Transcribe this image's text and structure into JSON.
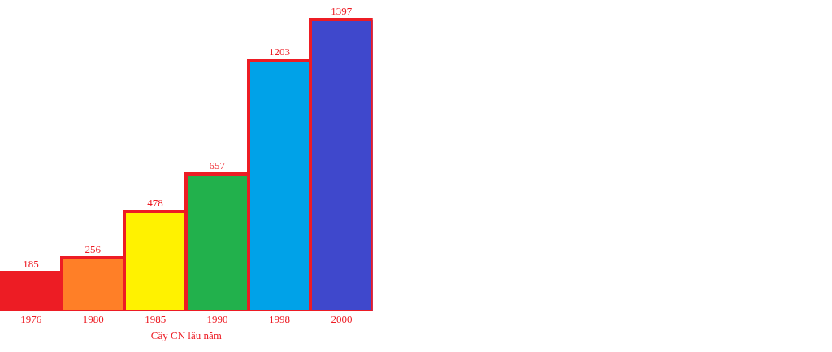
{
  "chart_data": {
    "type": "bar",
    "xlabel": "Cây CN lâu năm",
    "categories": [
      "1976",
      "1980",
      "1985",
      "1990",
      "1998",
      "2000"
    ],
    "values": [
      185,
      256,
      478,
      657,
      1203,
      1397
    ],
    "colors": [
      "#ed1c24",
      "#ff7f27",
      "#fff200",
      "#22b14c",
      "#00a2e8",
      "#3f48cc"
    ],
    "data_labels": true
  }
}
